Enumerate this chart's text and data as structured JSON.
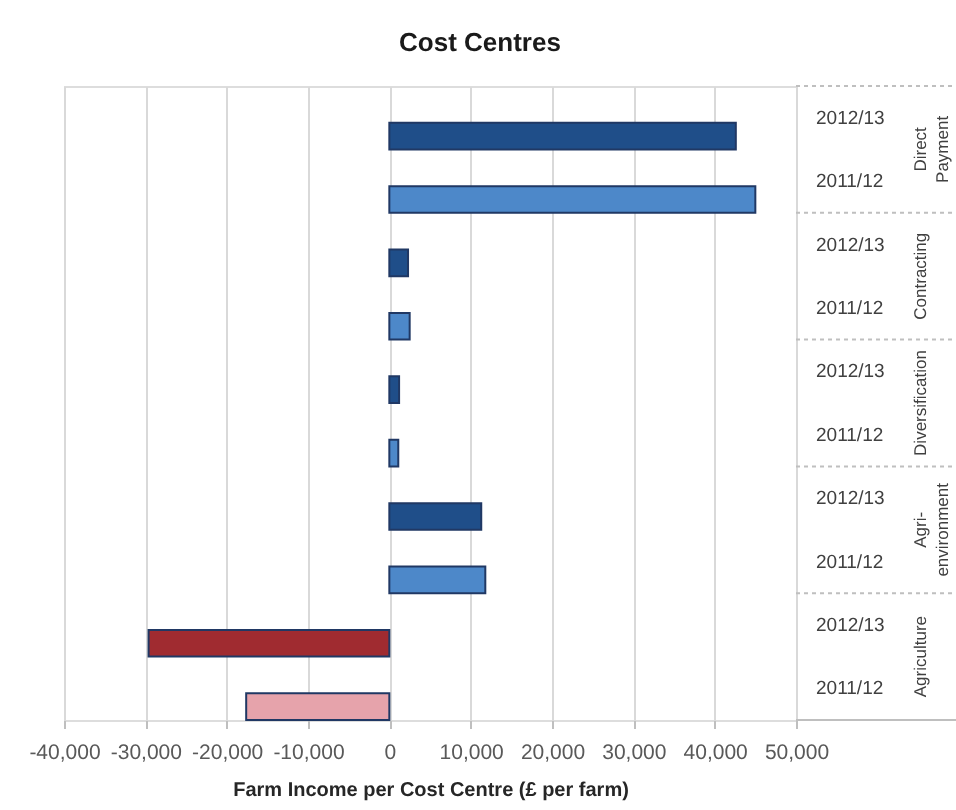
{
  "chart_data": {
    "type": "bar",
    "orientation": "horizontal",
    "title": "Cost Centres",
    "xlabel": "Farm Income per Cost Centre (£ per farm)",
    "categories": [
      "Direct Payment",
      "Contracting",
      "Diversification",
      "Agri-environment",
      "Agriculture"
    ],
    "series": [
      {
        "name": "2012/13",
        "colors": [
          "#1f4e89",
          "#1f4e89",
          "#1f4e89",
          "#1f4e89",
          "#a02b30"
        ],
        "values": [
          42600,
          2300,
          1200,
          11300,
          -29600
        ]
      },
      {
        "name": "2011/12",
        "colors": [
          "#4d88c9",
          "#4d88c9",
          "#4d88c9",
          "#4d88c9",
          "#e6a3ab"
        ],
        "values": [
          45000,
          2500,
          1100,
          11800,
          -17600
        ]
      }
    ],
    "xlim": [
      -40000,
      50000
    ],
    "xticks": [
      {
        "value": -40000,
        "label": "-40,000"
      },
      {
        "value": -30000,
        "label": "-30,000"
      },
      {
        "value": -20000,
        "label": "-20,000"
      },
      {
        "value": -10000,
        "label": "-10,000"
      },
      {
        "value": 0,
        "label": "0"
      },
      {
        "value": 10000,
        "label": "10,000"
      },
      {
        "value": 20000,
        "label": "20,000"
      },
      {
        "value": 30000,
        "label": "30,000"
      },
      {
        "value": 40000,
        "label": "40,000"
      },
      {
        "value": 50000,
        "label": "50,000"
      }
    ],
    "grid": "x"
  }
}
